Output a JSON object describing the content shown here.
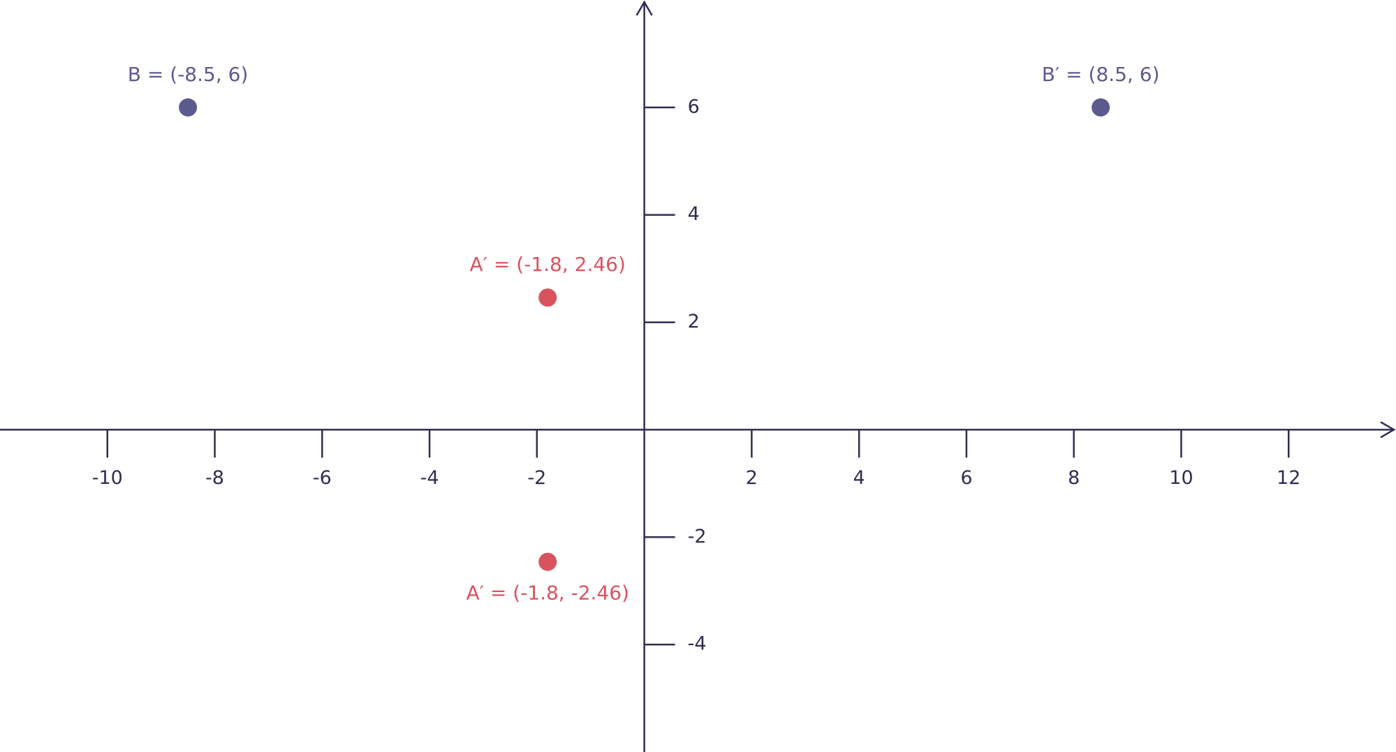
{
  "chart_data": {
    "type": "scatter",
    "xlim": [
      -12,
      14
    ],
    "ylim": [
      -6,
      8
    ],
    "xticks": [
      -10,
      -8,
      -6,
      -4,
      -2,
      2,
      4,
      6,
      8,
      10,
      12
    ],
    "yticks": [
      -4,
      -2,
      2,
      4,
      6
    ],
    "axis_color": "#2f2d52",
    "series": [
      {
        "color": "#5d5b8d",
        "x": [
          -8.5,
          8.5
        ],
        "values": [
          6,
          6
        ],
        "labels": [
          "B = (-8.5, 6)",
          "B′ = (8.5, 6)"
        ]
      },
      {
        "color": "#d9535f",
        "x": [
          -1.8,
          -1.8
        ],
        "values": [
          2.46,
          -2.46
        ],
        "labels": [
          "A′ = (-1.8, 2.46)",
          "A′ = (-1.8, -2.46)"
        ]
      }
    ]
  }
}
